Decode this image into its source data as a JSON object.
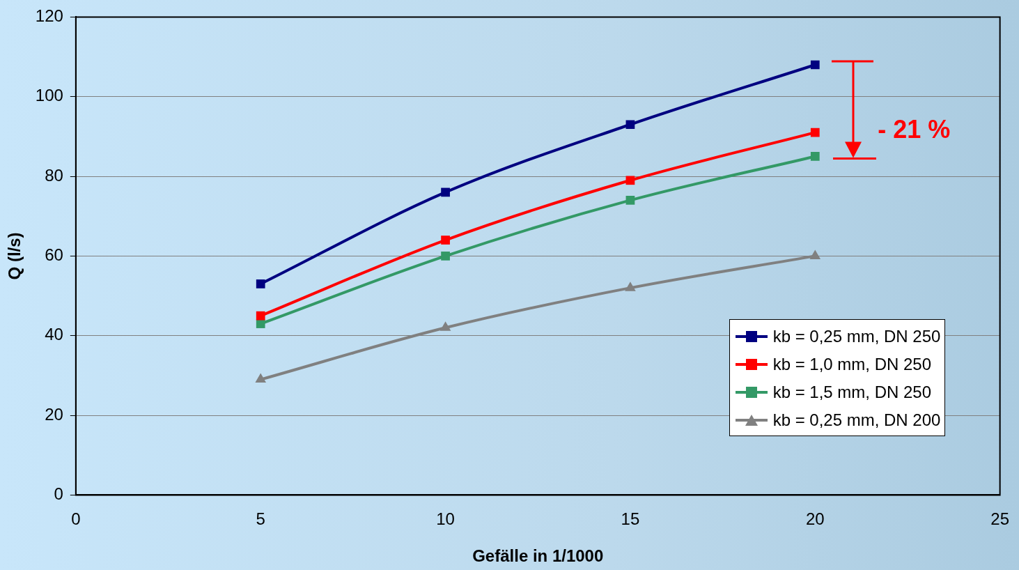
{
  "chart_data": {
    "type": "line",
    "xlabel": "Gefälle in 1/1000",
    "ylabel": "Q (l/s)",
    "x": [
      5,
      10,
      15,
      20
    ],
    "series": [
      {
        "name": "kb = 0,25 mm, DN 250",
        "color": "#000080",
        "marker": "square",
        "values": [
          53,
          76,
          93,
          108
        ]
      },
      {
        "name": "kb = 1,0 mm, DN 250",
        "color": "#ff0000",
        "marker": "square",
        "values": [
          45,
          64,
          79,
          91
        ]
      },
      {
        "name": "kb = 1,5 mm, DN 250",
        "color": "#339966",
        "marker": "square",
        "values": [
          43,
          60,
          74,
          85
        ]
      },
      {
        "name": "kb = 0,25 mm, DN 200",
        "color": "#808080",
        "marker": "triangle",
        "values": [
          29,
          42,
          52,
          60
        ]
      }
    ],
    "xlim": [
      0,
      25
    ],
    "xticks": [
      0,
      5,
      10,
      15,
      20,
      25
    ],
    "ylim": [
      0,
      120
    ],
    "yticks": [
      0,
      20,
      40,
      60,
      80,
      100,
      120
    ],
    "grid": "y",
    "legend": "bottom right",
    "line_style": "solid",
    "annotations": [
      "- 21 %"
    ]
  }
}
